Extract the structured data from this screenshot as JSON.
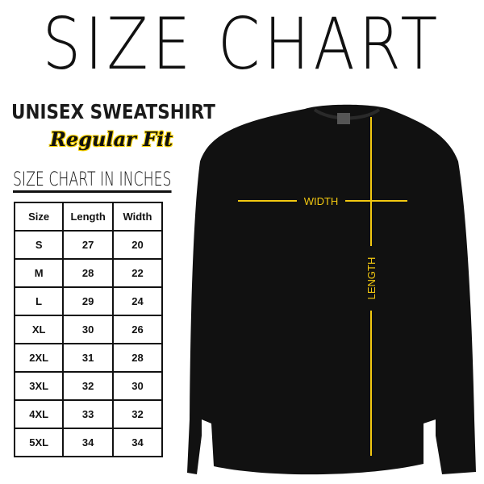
{
  "title": "SIZE CHART",
  "product": "UNISEX SWEATSHIRT",
  "fit": "Regular Fit",
  "chart_heading": "SIZE CHART IN INCHES",
  "table": {
    "headers": [
      "Size",
      "Length",
      "Width"
    ],
    "rows": [
      [
        "S",
        "27",
        "20"
      ],
      [
        "M",
        "28",
        "22"
      ],
      [
        "L",
        "29",
        "24"
      ],
      [
        "XL",
        "30",
        "26"
      ],
      [
        "2XL",
        "31",
        "28"
      ],
      [
        "3XL",
        "32",
        "30"
      ],
      [
        "4XL",
        "33",
        "32"
      ],
      [
        "5XL",
        "34",
        "34"
      ]
    ]
  },
  "diagram": {
    "width_label": "WIDTH",
    "length_label": "LENGTH",
    "line_color": "#f2c811",
    "garment_color": "#111111"
  }
}
